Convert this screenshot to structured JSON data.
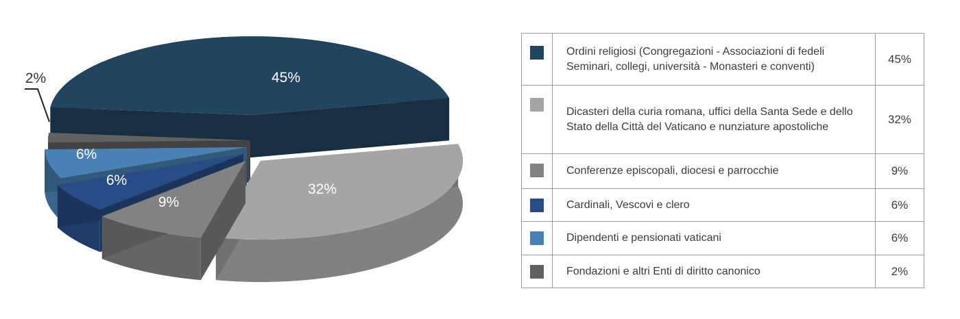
{
  "chart_data": {
    "type": "pie",
    "title": "",
    "slices": [
      {
        "label": "Ordini religiosi (Congregazioni - Associazioni di fedeli Seminari, collegi, università - Monasteri e conventi)",
        "value": 45,
        "value_label": "45%",
        "color": "#22455f"
      },
      {
        "label": "Dicasteri della curia romana, uffici della Santa Sede e dello Stato della Città del Vaticano e nunziature apostoliche",
        "value": 32,
        "value_label": "32%",
        "color": "#a5a5a5"
      },
      {
        "label": "Conferenze episcopali, diocesi e parrocchie",
        "value": 9,
        "value_label": "9%",
        "color": "#828282"
      },
      {
        "label": "Cardinali, Vescovi e clero",
        "value": 6,
        "value_label": "6%",
        "color": "#284d86"
      },
      {
        "label": "Dipendenti e pensionati vaticani",
        "value": 6,
        "value_label": "6%",
        "color": "#4a81b4"
      },
      {
        "label": "Fondazioni e altri Enti di diritto canonico",
        "value": 2,
        "value_label": "2%",
        "color": "#616161"
      }
    ],
    "legend_placement": "right"
  }
}
